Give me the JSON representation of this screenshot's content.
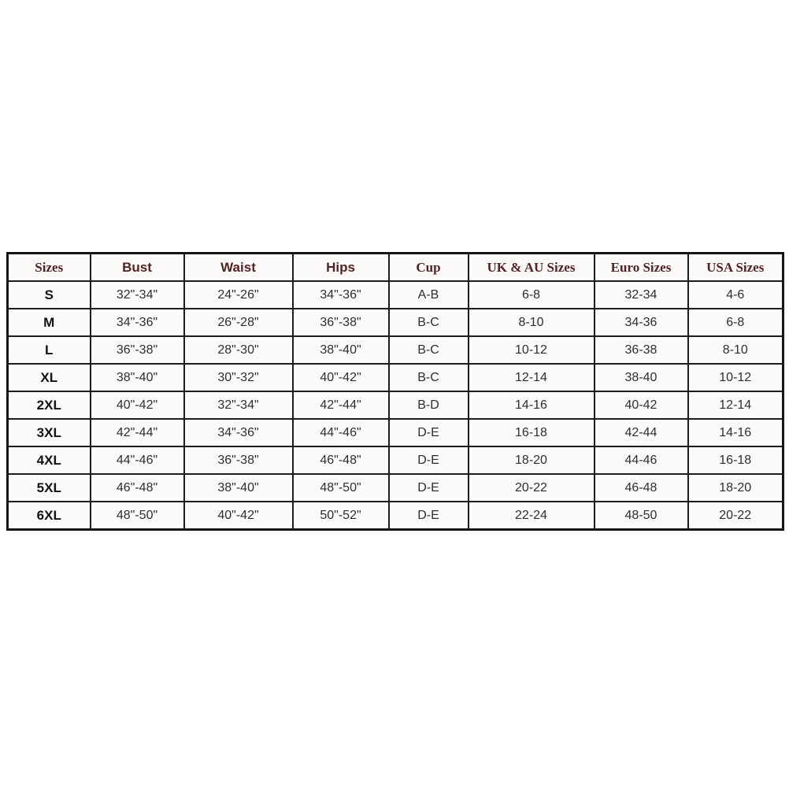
{
  "colors": {
    "header_text": "#532227",
    "body_text": "#2e2e2e",
    "row_label_text": "#121212",
    "border": "#1c1c1c",
    "background": "#ffffff"
  },
  "chart_data": {
    "type": "table",
    "headers": [
      "Sizes",
      "Bust",
      "Waist",
      "Hips",
      "Cup",
      "UK & AU Sizes",
      "Euro Sizes",
      "USA Sizes"
    ],
    "rows": [
      [
        "S",
        "32\"-34\"",
        "24\"-26\"",
        "34\"-36\"",
        "A-B",
        "6-8",
        "32-34",
        "4-6"
      ],
      [
        "M",
        "34\"-36\"",
        "26\"-28\"",
        "36\"-38\"",
        "B-C",
        "8-10",
        "34-36",
        "6-8"
      ],
      [
        "L",
        "36\"-38\"",
        "28\"-30\"",
        "38\"-40\"",
        "B-C",
        "10-12",
        "36-38",
        "8-10"
      ],
      [
        "XL",
        "38\"-40\"",
        "30\"-32\"",
        "40\"-42\"",
        "B-C",
        "12-14",
        "38-40",
        "10-12"
      ],
      [
        "2XL",
        "40\"-42\"",
        "32\"-34\"",
        "42\"-44\"",
        "B-D",
        "14-16",
        "40-42",
        "12-14"
      ],
      [
        "3XL",
        "42\"-44\"",
        "34\"-36\"",
        "44\"-46\"",
        "D-E",
        "16-18",
        "42-44",
        "14-16"
      ],
      [
        "4XL",
        "44\"-46\"",
        "36\"-38\"",
        "46\"-48\"",
        "D-E",
        "18-20",
        "44-46",
        "16-18"
      ],
      [
        "5XL",
        "46\"-48\"",
        "38\"-40\"",
        "48\"-50\"",
        "D-E",
        "20-22",
        "46-48",
        "18-20"
      ],
      [
        "6XL",
        "48\"-50\"",
        "40\"-42\"",
        "50\"-52\"",
        "D-E",
        "22-24",
        "48-50",
        "20-22"
      ]
    ]
  }
}
